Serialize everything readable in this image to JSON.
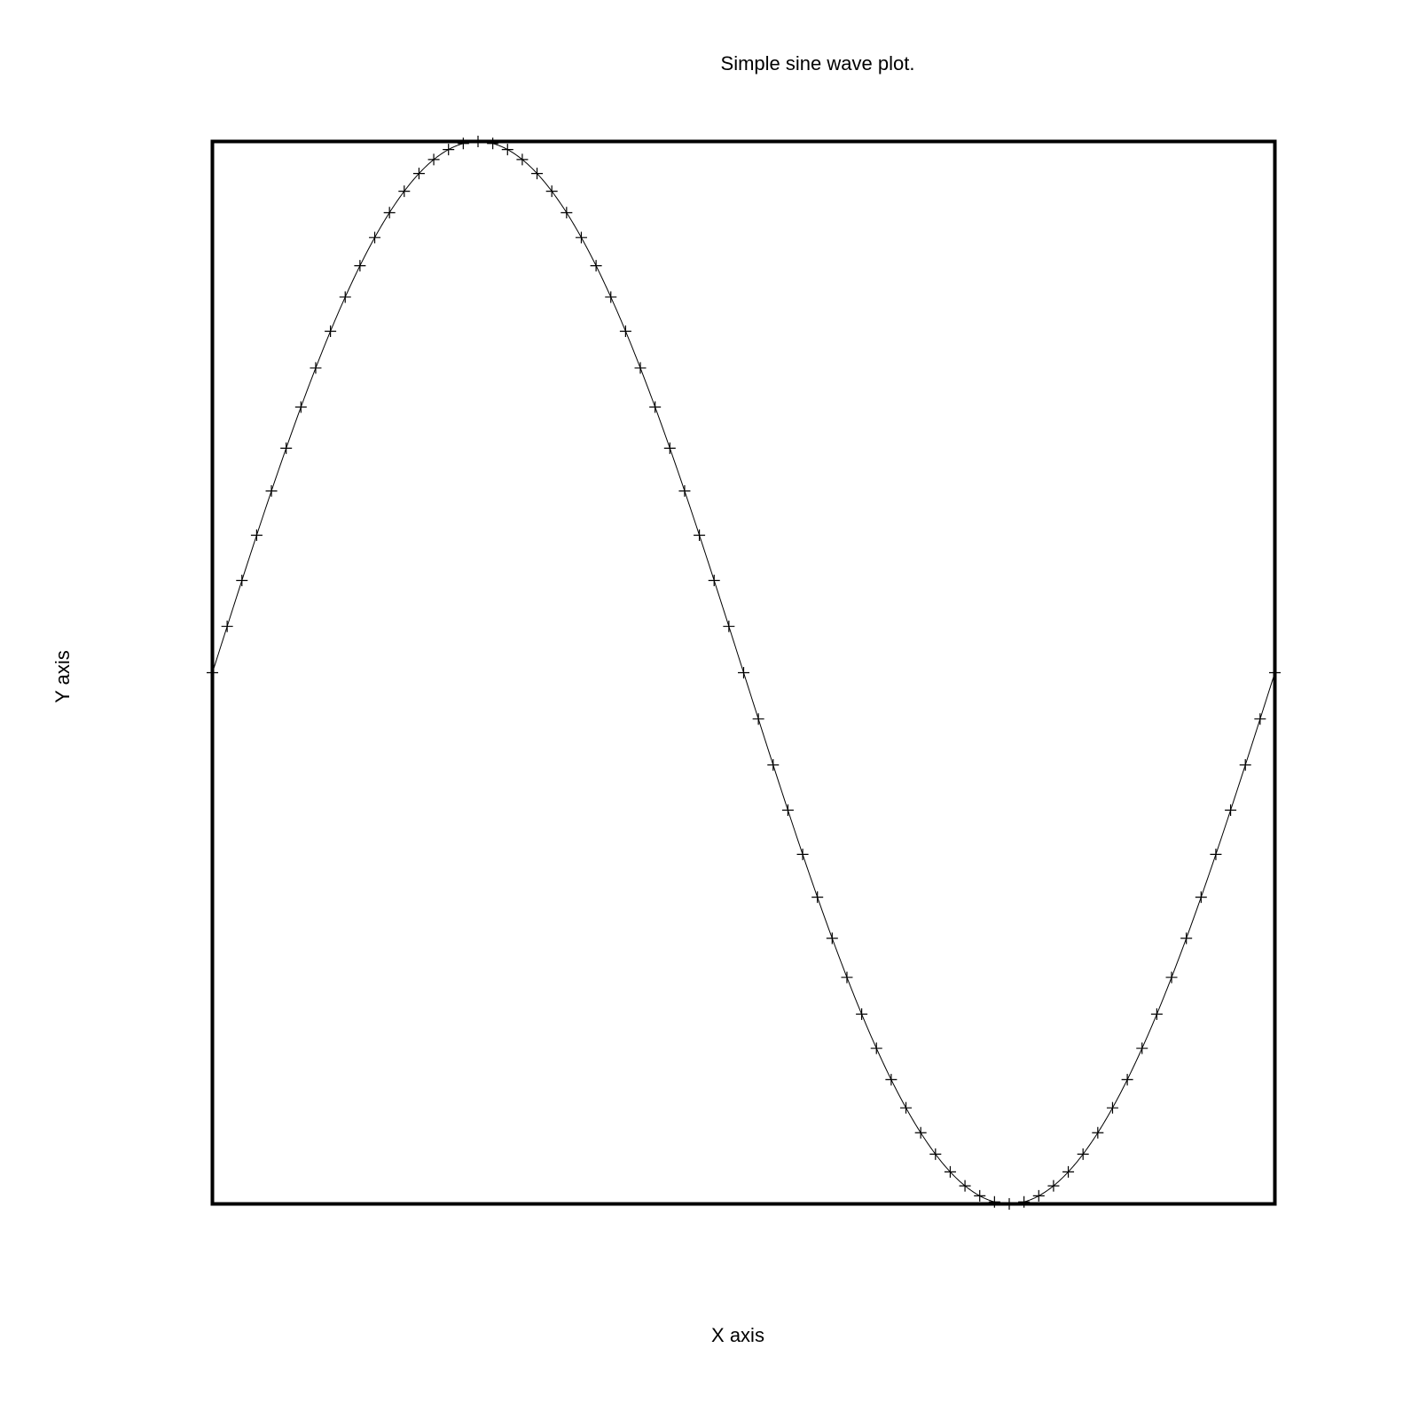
{
  "chart_data": {
    "type": "line",
    "title": "Simple sine wave plot.",
    "xlabel": "X axis",
    "ylabel": "Y axis",
    "xlim": [
      0,
      72
    ],
    "ylim": [
      -1,
      1
    ],
    "marker": "+",
    "marker_count": 73,
    "function": "sin(2*pi*i/72)",
    "axis_ticks": false,
    "grid": false,
    "line_color": "#000000"
  }
}
